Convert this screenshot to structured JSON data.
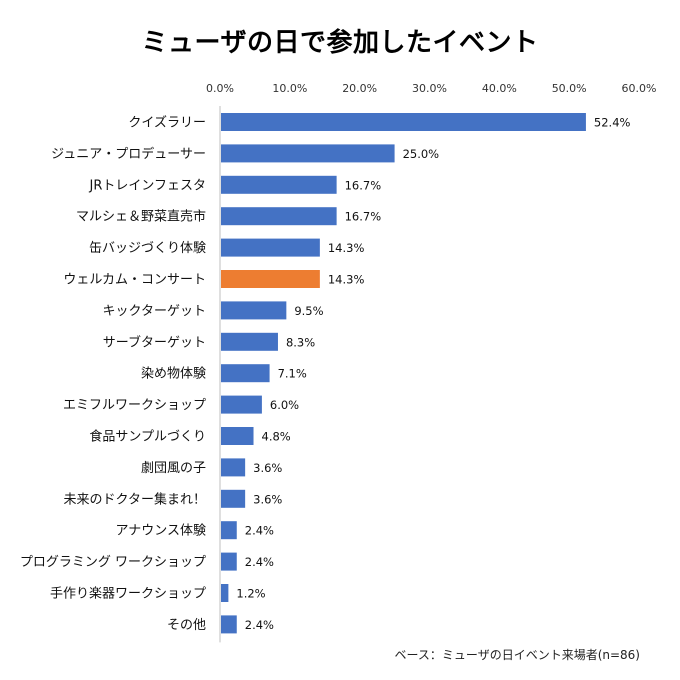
{
  "chart_data": {
    "type": "bar",
    "orientation": "horizontal",
    "title": "ミューザの日で参加したイベント",
    "base_note": "ベース：ミューザの日イベント来場者(n=86)",
    "x_ticks": [
      "0.0%",
      "10.0%",
      "20.0%",
      "30.0%",
      "40.0%",
      "50.0%",
      "60.0%"
    ],
    "xlim": [
      0,
      60
    ],
    "grid": false,
    "colors": {
      "default": "#4472C4",
      "highlight": "#ED7D31"
    },
    "categories": [
      "クイズラリー",
      "ジュニア・プロデューサー",
      "JRトレインフェスタ",
      "マルシェ＆野菜直売市",
      "缶バッジづくり体験",
      "ウェルカム・コンサート",
      "キックターゲット",
      "サーブターゲット",
      "染め物体験",
      "エミフルワークショップ",
      "食品サンプルづくり",
      "劇団風の子",
      "未来のドクター集まれ！",
      "アナウンス体験",
      "プログラミング ワークショップ",
      "手作り楽器ワークショップ",
      "その他"
    ],
    "values": [
      52.4,
      25.0,
      16.7,
      16.7,
      14.3,
      14.3,
      9.5,
      8.3,
      7.1,
      6.0,
      4.8,
      3.6,
      3.6,
      2.4,
      2.4,
      1.2,
      2.4
    ],
    "value_labels": [
      "52.4%",
      "25.0%",
      "16.7%",
      "16.7%",
      "14.3%",
      "14.3%",
      "9.5%",
      "8.3%",
      "7.1%",
      "6.0%",
      "4.8%",
      "3.6%",
      "3.6%",
      "2.4%",
      "2.4%",
      "1.2%",
      "2.4%"
    ],
    "highlight_index": 5
  }
}
